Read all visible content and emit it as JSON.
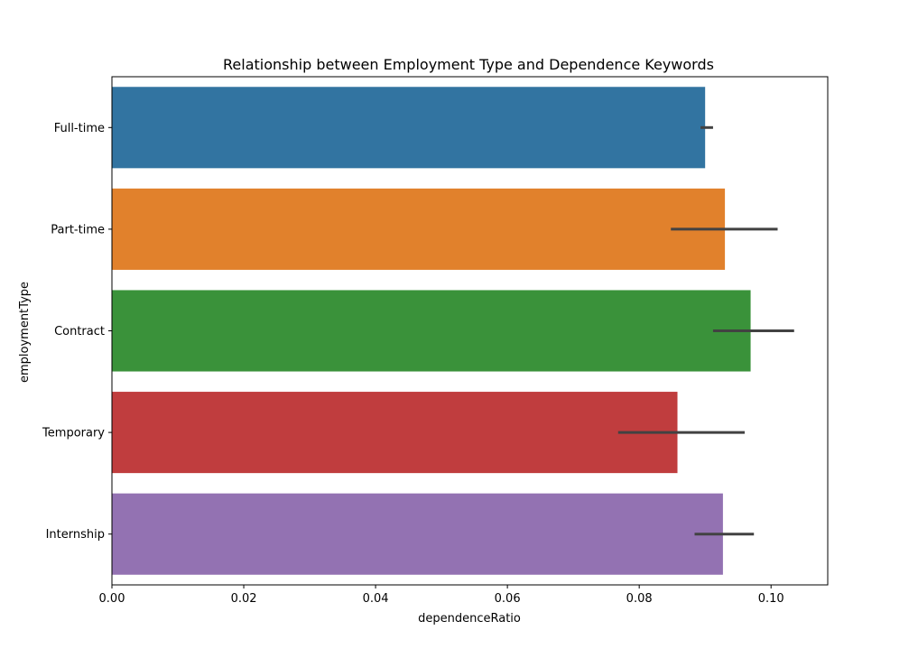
{
  "chart_data": {
    "type": "bar",
    "orientation": "horizontal",
    "title": "Relationship between Employment Type and Dependence Keywords",
    "xlabel": "dependenceRatio",
    "ylabel": "employmentType",
    "xlim": [
      0,
      0.1086
    ],
    "xticks": [
      0.0,
      0.02,
      0.04,
      0.06,
      0.08,
      0.1
    ],
    "xtick_labels": [
      "0.00",
      "0.02",
      "0.04",
      "0.06",
      "0.08",
      "0.10"
    ],
    "grid": false,
    "legend": "none",
    "categories": [
      "Full-time",
      "Part-time",
      "Contract",
      "Temporary",
      "Internship"
    ],
    "values": [
      0.09,
      0.093,
      0.0969,
      0.0858,
      0.0927
    ],
    "error_low": [
      0.0893,
      0.0848,
      0.0912,
      0.0768,
      0.0884
    ],
    "error_high": [
      0.0912,
      0.101,
      0.1035,
      0.096,
      0.0974
    ],
    "colors": [
      "#3274a1",
      "#e1812c",
      "#3a923a",
      "#c03d3e",
      "#9372b2"
    ],
    "error_color": "#424242"
  }
}
